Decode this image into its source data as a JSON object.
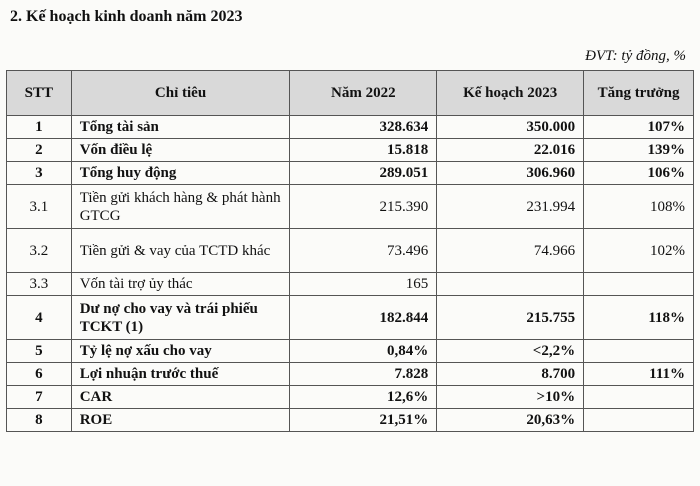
{
  "section_heading": "2.  Kế hoạch kinh doanh năm 2023",
  "unit_note": "ĐVT: tỷ đồng, %",
  "table": {
    "headers": [
      "STT",
      "Chỉ tiêu",
      "Năm 2022",
      "Kế hoạch 2023",
      "Tăng trưởng"
    ],
    "rows": [
      {
        "stt": "1",
        "name": "Tổng tài sản",
        "y2022": "328.634",
        "plan2023": "350.000",
        "growth": "107%",
        "bold": true
      },
      {
        "stt": "2",
        "name": "Vốn điều lệ",
        "y2022": "15.818",
        "plan2023": "22.016",
        "growth": "139%",
        "bold": true
      },
      {
        "stt": "3",
        "name": "Tổng huy động",
        "y2022": "289.051",
        "plan2023": "306.960",
        "growth": "106%",
        "bold": true
      },
      {
        "stt": "3.1",
        "name": "Tiền gửi khách hàng & phát hành GTCG",
        "y2022": "215.390",
        "plan2023": "231.994",
        "growth": "108%",
        "bold": false
      },
      {
        "stt": "3.2",
        "name": "Tiền gửi & vay của TCTD khác",
        "y2022": "73.496",
        "plan2023": "74.966",
        "growth": "102%",
        "bold": false
      },
      {
        "stt": "3.3",
        "name": "Vốn tài trợ ủy thác",
        "y2022": "165",
        "plan2023": "",
        "growth": "",
        "bold": false
      },
      {
        "stt": "4",
        "name": "Dư nợ cho vay và trái phiếu TCKT (1)",
        "y2022": "182.844",
        "plan2023": "215.755",
        "growth": "118%",
        "bold": true
      },
      {
        "stt": "5",
        "name": "Tỷ lệ nợ xấu cho vay",
        "y2022": "0,84%",
        "plan2023": "<2,2%",
        "growth": "",
        "bold": true
      },
      {
        "stt": "6",
        "name": "Lợi nhuận trước thuế",
        "y2022": "7.828",
        "plan2023": "8.700",
        "growth": "111%",
        "bold": true
      },
      {
        "stt": "7",
        "name": "CAR",
        "y2022": "12,6%",
        "plan2023": ">10%",
        "growth": "",
        "bold": true
      },
      {
        "stt": "8",
        "name": "ROE",
        "y2022": "21,51%",
        "plan2023": "20,63%",
        "growth": "",
        "bold": true
      }
    ]
  }
}
